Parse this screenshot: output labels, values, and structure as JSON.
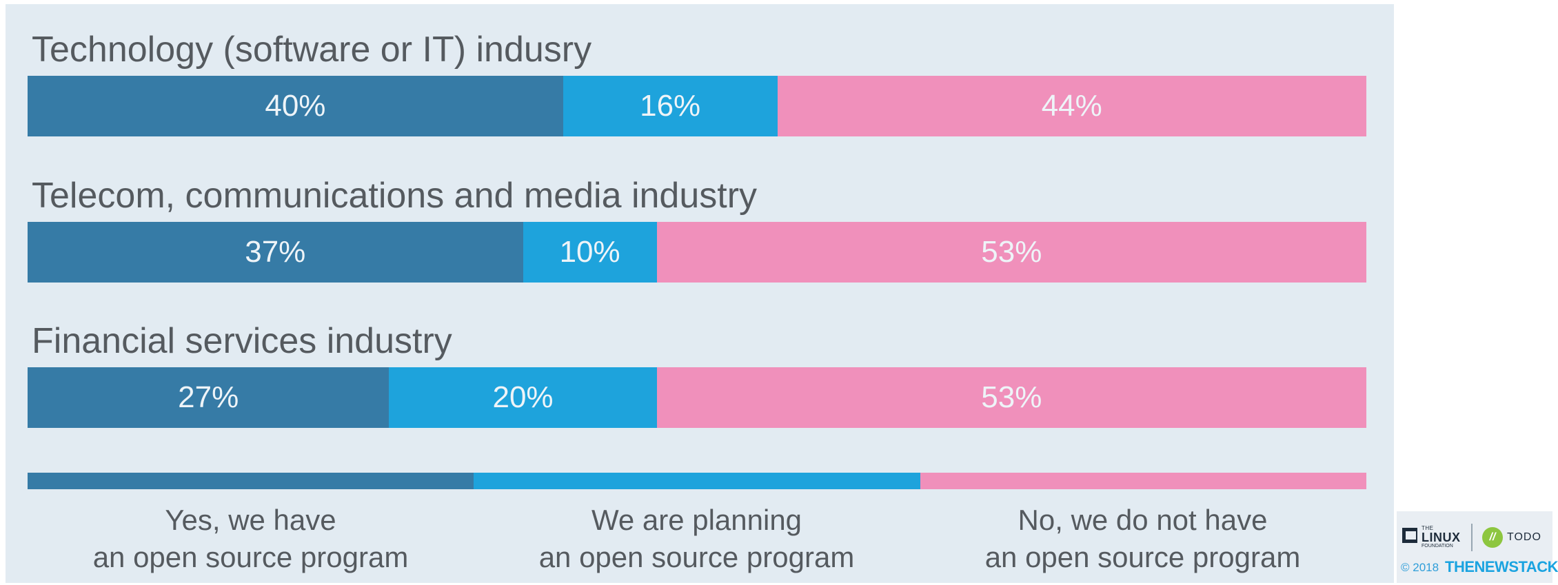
{
  "chart_data": {
    "type": "bar",
    "orientation": "horizontal",
    "stacked": true,
    "percent": true,
    "xlim": [
      0,
      100
    ],
    "grid": false,
    "legend_placement": "bottom",
    "categories": [
      "Technology (software or IT) indusry",
      "Telecom, communications and media industry",
      "Financial services industry"
    ],
    "series": [
      {
        "name": "Yes, we have an open source program",
        "legend_lines": [
          "Yes, we have",
          "an open source program"
        ],
        "color": "#367ba6",
        "values": [
          40,
          37,
          27
        ],
        "labels": [
          "40%",
          "37%",
          "27%"
        ]
      },
      {
        "name": "We are planning an open source program",
        "legend_lines": [
          "We are planning",
          "an open source program"
        ],
        "color": "#1ea3dc",
        "values": [
          16,
          10,
          20
        ],
        "labels": [
          "16%",
          "10%",
          "20%"
        ]
      },
      {
        "name": "No, we do not have an open source program",
        "legend_lines": [
          "No, we do not have",
          "an open source program"
        ],
        "color": "#f090bb",
        "values": [
          44,
          53,
          53
        ],
        "labels": [
          "44%",
          "53%",
          "53%"
        ]
      }
    ]
  },
  "credits": {
    "linux_foundation": {
      "the": "THE",
      "linux": "LINUX",
      "foundation": "FOUNDATION",
      "icon": "linux-foundation-logo"
    },
    "todo": {
      "mark": "//",
      "text": "TODO",
      "color": "#8dc63f"
    },
    "copyright": "© 2018",
    "publisher": "THENEWSTACK",
    "publisher_color": "#1aa3e0"
  }
}
